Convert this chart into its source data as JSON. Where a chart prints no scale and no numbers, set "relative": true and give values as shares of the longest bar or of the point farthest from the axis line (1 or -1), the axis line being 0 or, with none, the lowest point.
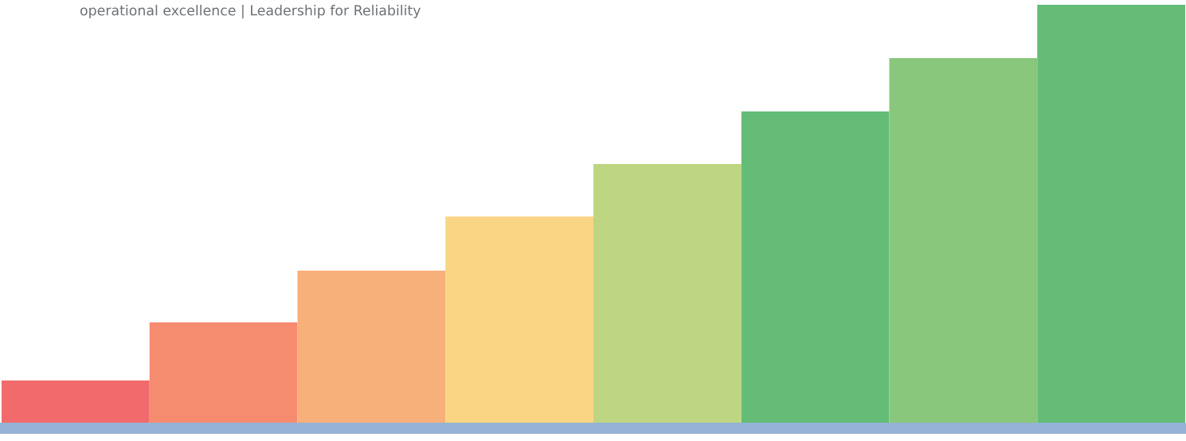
{
  "chart_data": {
    "type": "bar",
    "title": "operational excellence | Leadership for Reliability",
    "categories": [
      null,
      null,
      null,
      null,
      null,
      null,
      null,
      null
    ],
    "values": [
      0.113,
      0.25,
      0.372,
      0.5,
      0.624,
      0.748,
      0.874,
      1.0
    ],
    "colors": [
      "#f26b6c",
      "#f58c70",
      "#f8b07a",
      "#fad583",
      "#bed681",
      "#64bc77",
      "#89c77c",
      "#64bc77"
    ],
    "relative": true,
    "grid": false,
    "legend": false
  }
}
